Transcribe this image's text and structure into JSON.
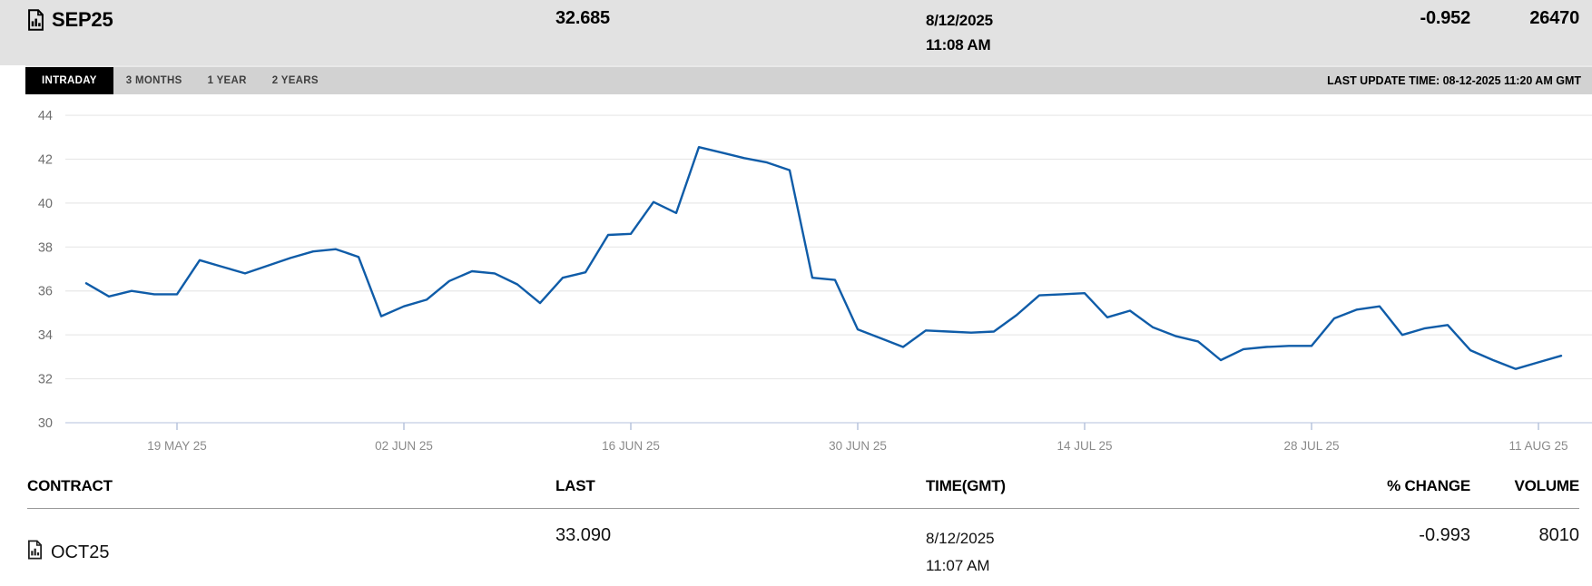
{
  "header": {
    "contract": "SEP25",
    "last": "32.685",
    "date": "8/12/2025",
    "time": "11:08 AM",
    "pct_change": "-0.952",
    "volume": "26470"
  },
  "tabs": [
    {
      "label": "INTRADAY",
      "active": true
    },
    {
      "label": "3 MONTHS",
      "active": false
    },
    {
      "label": "1 YEAR",
      "active": false
    },
    {
      "label": "2 YEARS",
      "active": false
    }
  ],
  "last_update": "LAST UPDATE TIME: 08-12-2025 11:20 AM GMT",
  "table": {
    "headers": [
      "CONTRACT",
      "LAST",
      "TIME(GMT)",
      "% CHANGE",
      "VOLUME"
    ],
    "rows": [
      {
        "contract": "OCT25",
        "last": "33.090",
        "date": "8/12/2025",
        "time": "11:07 AM",
        "pct_change": "-0.993",
        "volume": "8010"
      }
    ]
  },
  "chart_data": {
    "type": "line",
    "title": "SEP25 3-month daily price history",
    "x": [
      "13 MAY 25",
      "14 MAY 25",
      "15 MAY 25",
      "16 MAY 25",
      "19 MAY 25",
      "20 MAY 25",
      "21 MAY 25",
      "22 MAY 25",
      "23 MAY 25",
      "26 MAY 25",
      "27 MAY 25",
      "28 MAY 25",
      "29 MAY 25",
      "30 MAY 25",
      "02 JUN 25",
      "03 JUN 25",
      "04 JUN 25",
      "05 JUN 25",
      "06 JUN 25",
      "09 JUN 25",
      "10 JUN 25",
      "11 JUN 25",
      "12 JUN 25",
      "13 JUN 25",
      "16 JUN 25",
      "17 JUN 25",
      "18 JUN 25",
      "19 JUN 25",
      "20 JUN 25",
      "23 JUN 25",
      "24 JUN 25",
      "25 JUN 25",
      "26 JUN 25",
      "27 JUN 25",
      "30 JUN 25",
      "01 JUL 25",
      "02 JUL 25",
      "03 JUL 25",
      "04 JUL 25",
      "07 JUL 25",
      "08 JUL 25",
      "09 JUL 25",
      "10 JUL 25",
      "11 JUL 25",
      "14 JUL 25",
      "15 JUL 25",
      "16 JUL 25",
      "17 JUL 25",
      "18 JUL 25",
      "21 JUL 25",
      "22 JUL 25",
      "23 JUL 25",
      "24 JUL 25",
      "25 JUL 25",
      "28 JUL 25",
      "29 JUL 25",
      "30 JUL 25",
      "31 JUL 25",
      "01 AUG 25",
      "04 AUG 25",
      "05 AUG 25",
      "06 AUG 25",
      "07 AUG 25",
      "08 AUG 25",
      "11 AUG 25",
      "12 AUG 25"
    ],
    "values": [
      36.35,
      35.75,
      36.0,
      35.85,
      35.85,
      37.4,
      37.1,
      36.8,
      37.15,
      37.5,
      37.8,
      37.9,
      37.55,
      34.85,
      35.3,
      35.6,
      36.45,
      36.9,
      36.8,
      36.3,
      35.45,
      36.6,
      36.85,
      38.55,
      38.6,
      40.05,
      39.55,
      42.55,
      42.3,
      42.05,
      41.85,
      41.5,
      36.6,
      36.5,
      34.25,
      33.85,
      33.45,
      34.2,
      34.15,
      34.1,
      34.15,
      34.9,
      35.8,
      35.85,
      35.9,
      34.8,
      35.1,
      34.35,
      33.95,
      33.7,
      32.85,
      33.35,
      33.45,
      33.5,
      33.5,
      34.75,
      35.15,
      35.3,
      34.0,
      34.3,
      34.45,
      33.3,
      32.85,
      32.45,
      32.75,
      33.05
    ],
    "x_tick_indices": [
      4,
      14,
      24,
      34,
      44,
      54,
      64
    ],
    "x_tick_labels": [
      "19 MAY 25",
      "02 JUN 25",
      "16 JUN 25",
      "30 JUN 25",
      "14 JUL 25",
      "28 JUL 25",
      "11 AUG 25"
    ],
    "y_ticks": [
      30,
      32,
      34,
      36,
      38,
      40,
      42,
      44
    ],
    "ylim": [
      30,
      44.8
    ],
    "xlabel": "",
    "ylabel": "",
    "grid": true,
    "legend": "none",
    "line_color": "#0f5ca8",
    "grid_color": "#e8e8e8",
    "axis_color": "#c3cee4",
    "tick_color": "#b3c0da"
  }
}
